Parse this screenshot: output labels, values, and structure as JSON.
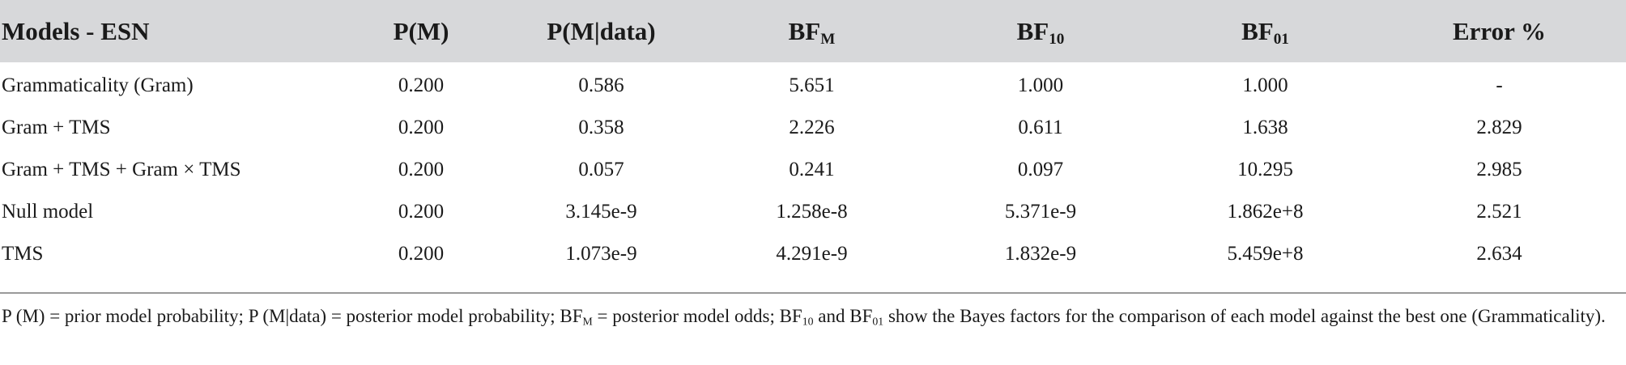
{
  "header": {
    "models": "Models - ESN",
    "p_m": "P(M)",
    "p_m_data": "P(M|data)",
    "bf_m_base": "BF",
    "bf_m_sub": "M",
    "bf10_base": "BF",
    "bf10_sub": "10",
    "bf01_base": "BF",
    "bf01_sub": "01",
    "error": "Error %"
  },
  "rows": [
    {
      "model": "Grammaticality (Gram)",
      "p_m": "0.200",
      "p_m_data": "0.586",
      "bf_m": "5.651",
      "bf10": "1.000",
      "bf01": "1.000",
      "error": "-"
    },
    {
      "model": "Gram + TMS",
      "p_m": "0.200",
      "p_m_data": "0.358",
      "bf_m": "2.226",
      "bf10": "0.611",
      "bf01": "1.638",
      "error": "2.829"
    },
    {
      "model": "Gram + TMS + Gram × TMS",
      "p_m": "0.200",
      "p_m_data": "0.057",
      "bf_m": "0.241",
      "bf10": "0.097",
      "bf01": "10.295",
      "error": "2.985"
    },
    {
      "model": "Null model",
      "p_m": "0.200",
      "p_m_data": "3.145e-9",
      "bf_m": "1.258e-8",
      "bf10": "5.371e-9",
      "bf01": "1.862e+8",
      "error": "2.521"
    },
    {
      "model": "TMS",
      "p_m": "0.200",
      "p_m_data": "1.073e-9",
      "bf_m": "4.291e-9",
      "bf10": "1.832e-9",
      "bf01": "5.459e+8",
      "error": "2.634"
    }
  ],
  "footnote": {
    "part1": "P (M) = prior model probability; P (M|data) = posterior model probability; ",
    "bf": "BF",
    "sub_m": "M",
    "part2": " = posterior model odds; ",
    "sub_10": "10",
    "part3": " and ",
    "sub_01": "01",
    "part4": " show the Bayes factors for the comparison of each model against the best one (Grammaticality)."
  },
  "colors": {
    "header_band": "#d7d8da",
    "rule": "#9a9a9a",
    "text": "#1a1a1a"
  }
}
